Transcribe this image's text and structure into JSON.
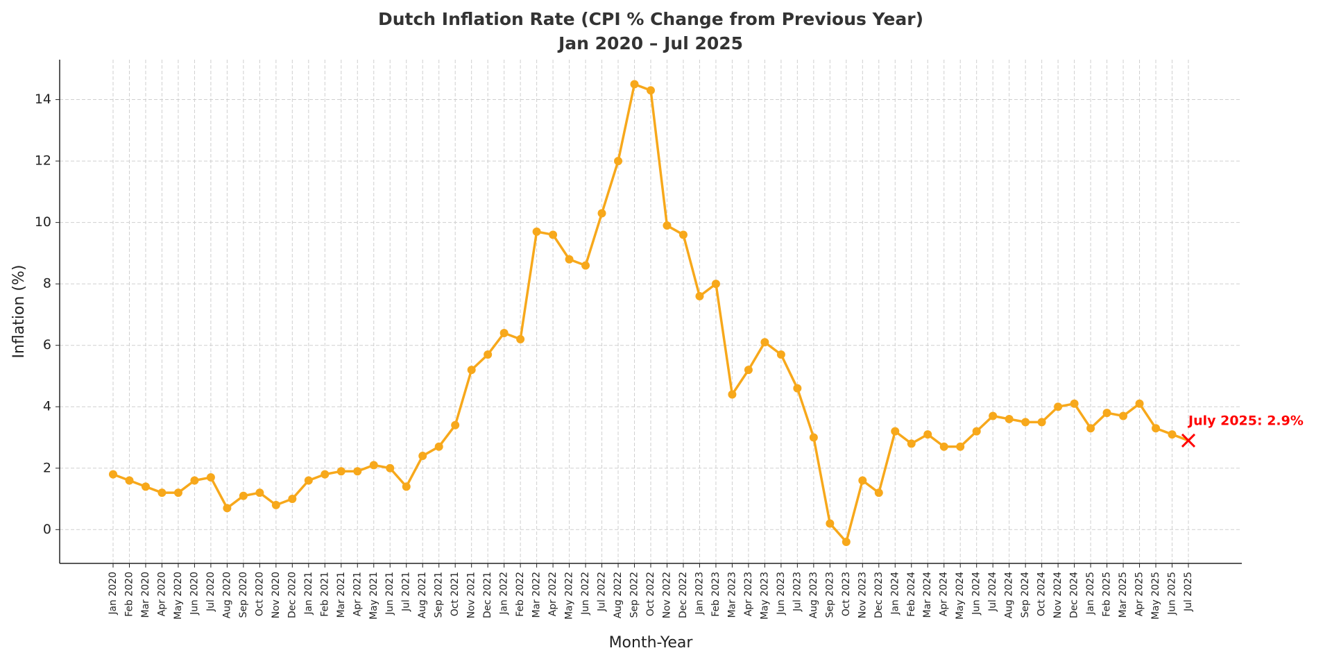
{
  "chart_data": {
    "type": "line",
    "title": "Dutch Inflation Rate (CPI % Change from Previous Year)",
    "subtitle": "Jan 2020 – Jul 2025",
    "x_label": "Month-Year",
    "y_label": "Inflation (%)",
    "categories": [
      "Jan 2020",
      "Feb 2020",
      "Mar 2020",
      "Apr 2020",
      "May 2020",
      "Jun 2020",
      "Jul 2020",
      "Aug 2020",
      "Sep 2020",
      "Oct 2020",
      "Nov 2020",
      "Dec 2020",
      "Jan 2021",
      "Feb 2021",
      "Mar 2021",
      "Apr 2021",
      "May 2021",
      "Jun 2021",
      "Jul 2021",
      "Aug 2021",
      "Sep 2021",
      "Oct 2021",
      "Nov 2021",
      "Dec 2021",
      "Jan 2022",
      "Feb 2022",
      "Mar 2022",
      "Apr 2022",
      "May 2022",
      "Jun 2022",
      "Jul 2022",
      "Aug 2022",
      "Sep 2022",
      "Oct 2022",
      "Nov 2022",
      "Dec 2022",
      "Jan 2023",
      "Feb 2023",
      "Mar 2023",
      "Apr 2023",
      "May 2023",
      "Jun 2023",
      "Jul 2023",
      "Aug 2023",
      "Sep 2023",
      "Oct 2023",
      "Nov 2023",
      "Dec 2023",
      "Jan 2024",
      "Feb 2024",
      "Mar 2024",
      "Apr 2024",
      "May 2024",
      "Jun 2024",
      "Jul 2024",
      "Aug 2024",
      "Sep 2024",
      "Oct 2024",
      "Nov 2024",
      "Dec 2024",
      "Jan 2025",
      "Feb 2025",
      "Mar 2025",
      "Apr 2025",
      "May 2025",
      "Jun 2025",
      "Jul 2025"
    ],
    "series": [
      {
        "color": "#f7a81b",
        "values": [
          1.8,
          1.6,
          1.4,
          1.2,
          1.2,
          1.6,
          1.7,
          0.7,
          1.1,
          1.2,
          0.8,
          1.0,
          1.6,
          1.8,
          1.9,
          1.9,
          2.1,
          2.0,
          1.4,
          2.4,
          2.7,
          3.4,
          5.2,
          5.7,
          6.4,
          6.2,
          9.7,
          9.6,
          8.8,
          8.6,
          10.3,
          12.0,
          14.5,
          14.3,
          9.9,
          9.6,
          7.6,
          8.0,
          4.4,
          5.2,
          6.1,
          5.7,
          4.6,
          3.0,
          0.2,
          -0.4,
          1.6,
          1.2,
          3.2,
          2.8,
          3.1,
          2.7,
          2.7,
          3.2,
          3.7,
          3.6,
          3.5,
          3.5,
          4.0,
          4.1,
          3.3,
          3.8,
          3.7,
          4.1,
          3.3,
          3.1,
          2.9
        ]
      }
    ],
    "annotation": {
      "text": "July 2025: 2.9%",
      "x": "Jul 2025",
      "y": 2.9,
      "color": "#ff0000"
    },
    "ylim": [
      -1.1,
      15.3
    ],
    "yticks": [
      0,
      2,
      4,
      6,
      8,
      10,
      12,
      14
    ],
    "grid": true
  }
}
